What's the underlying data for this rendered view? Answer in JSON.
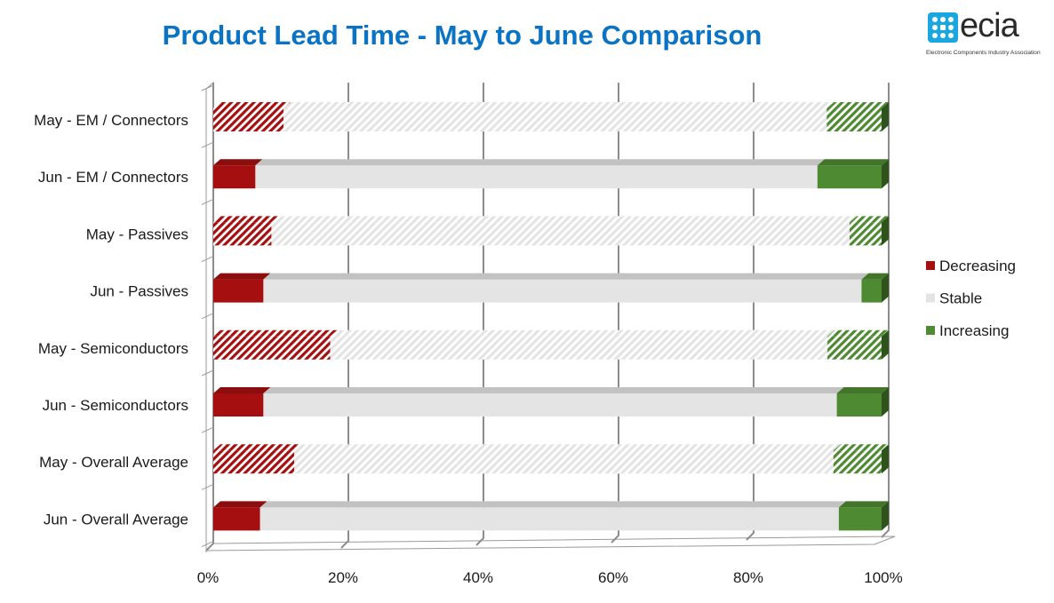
{
  "title": "Product Lead Time - May to June Comparison",
  "logo": {
    "word": "ecia",
    "tagline": "Electronic Components Industry Association",
    "color": "#1aa6e0"
  },
  "chart_data": {
    "type": "bar",
    "orientation": "horizontal",
    "stacked": "percent",
    "categories": [
      "May - EM / Connectors",
      "Jun - EM / Connectors",
      "May - Passives",
      "Jun - Passives",
      "May - Semiconductors",
      "Jun - Semiconductors",
      "May - Overall Average",
      "Jun - Overall Average"
    ],
    "hatched_rows": [
      true,
      false,
      true,
      false,
      true,
      false,
      true,
      false
    ],
    "series": [
      {
        "name": "Decreasing",
        "color": "#a50f0f",
        "values": [
          10.5,
          6.3,
          8.7,
          7.5,
          17.5,
          7.5,
          12.1,
          7.0
        ]
      },
      {
        "name": "Stable",
        "color": "#e4e4e4",
        "values": [
          81.3,
          84.1,
          86.5,
          89.5,
          74.4,
          85.8,
          80.7,
          86.6
        ]
      },
      {
        "name": "Increasing",
        "color": "#4e8a31",
        "values": [
          8.2,
          9.6,
          4.8,
          3.0,
          8.1,
          6.7,
          7.2,
          6.4
        ]
      }
    ],
    "xlim": [
      0,
      100
    ],
    "x_ticks": [
      "0%",
      "20%",
      "40%",
      "60%",
      "80%",
      "100%"
    ],
    "grid": true,
    "legend_position": "right"
  }
}
